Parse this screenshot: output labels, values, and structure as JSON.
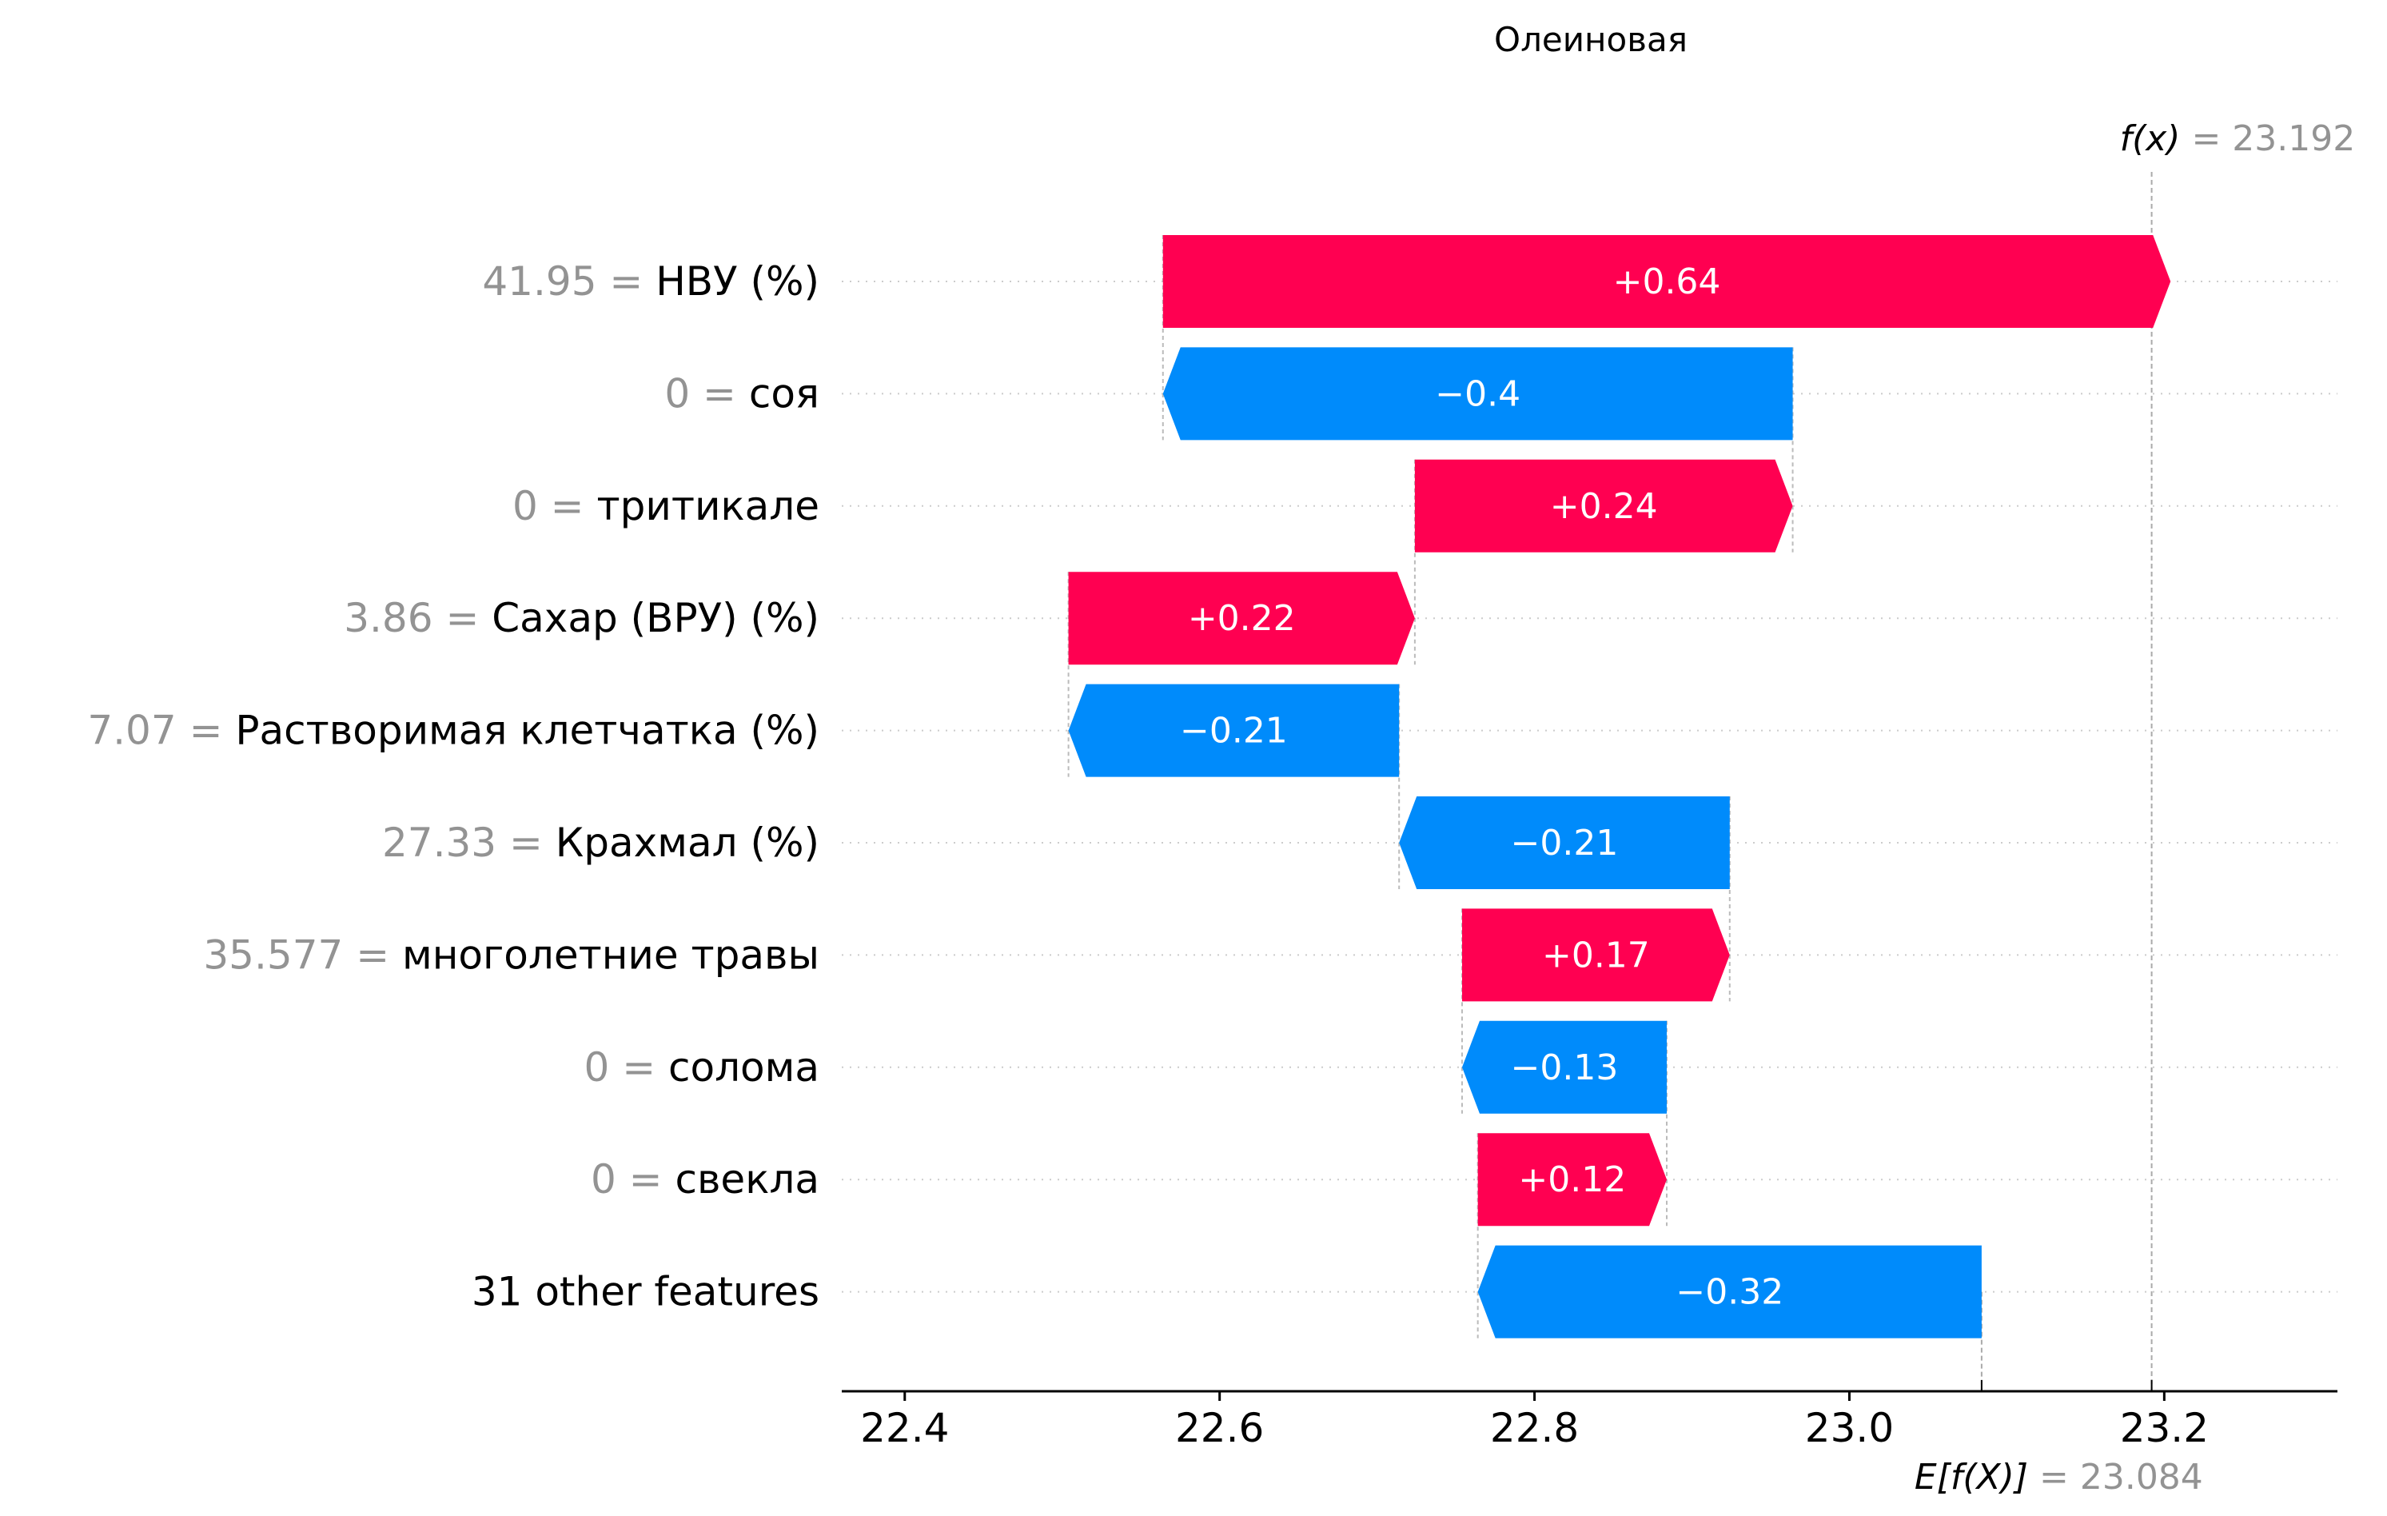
{
  "chart_data": {
    "type": "bar",
    "subtype": "shap-waterfall",
    "title": "Олеиновая",
    "features": [
      {
        "value": "41.95",
        "name": "НВУ (%)",
        "contribution": 0.64,
        "label": "+0.64"
      },
      {
        "value": "0",
        "name": "соя",
        "contribution": -0.4,
        "label": "−0.4"
      },
      {
        "value": "0",
        "name": "тритикале",
        "contribution": 0.24,
        "label": "+0.24"
      },
      {
        "value": "3.86",
        "name": "Сахар (ВРУ) (%)",
        "contribution": 0.22,
        "label": "+0.22"
      },
      {
        "value": "7.07",
        "name": "Растворимая клетчатка (%)",
        "contribution": -0.21,
        "label": "−0.21"
      },
      {
        "value": "27.33",
        "name": "Крахмал (%)",
        "contribution": -0.21,
        "label": "−0.21"
      },
      {
        "value": "35.577",
        "name": "многолетние травы",
        "contribution": 0.17,
        "label": "+0.17"
      },
      {
        "value": "0",
        "name": "солома",
        "contribution": -0.13,
        "label": "−0.13"
      },
      {
        "value": "0",
        "name": "свекла",
        "contribution": 0.12,
        "label": "+0.12"
      },
      {
        "value": "",
        "name": "31 other features",
        "contribution": -0.32,
        "label": "−0.32"
      }
    ],
    "fx": 23.192,
    "fx_label": "f(x)",
    "fx_value_text": "= 23.192",
    "efx": 23.084,
    "efx_label": "E[f(X)]",
    "efx_value_text": "= 23.084",
    "xlim": [
      22.36,
      23.31
    ],
    "xticks": [
      22.4,
      22.6,
      22.8,
      23.0,
      23.2
    ],
    "xtick_labels": [
      "22.4",
      "22.6",
      "22.8",
      "23.0",
      "23.2"
    ],
    "grid": "dotted horizontal row guides",
    "colors": {
      "positive": "#ff0051",
      "negative": "#008bfb",
      "axis": "#000000",
      "value_text": "#939393",
      "guide": "#cccccc"
    }
  }
}
